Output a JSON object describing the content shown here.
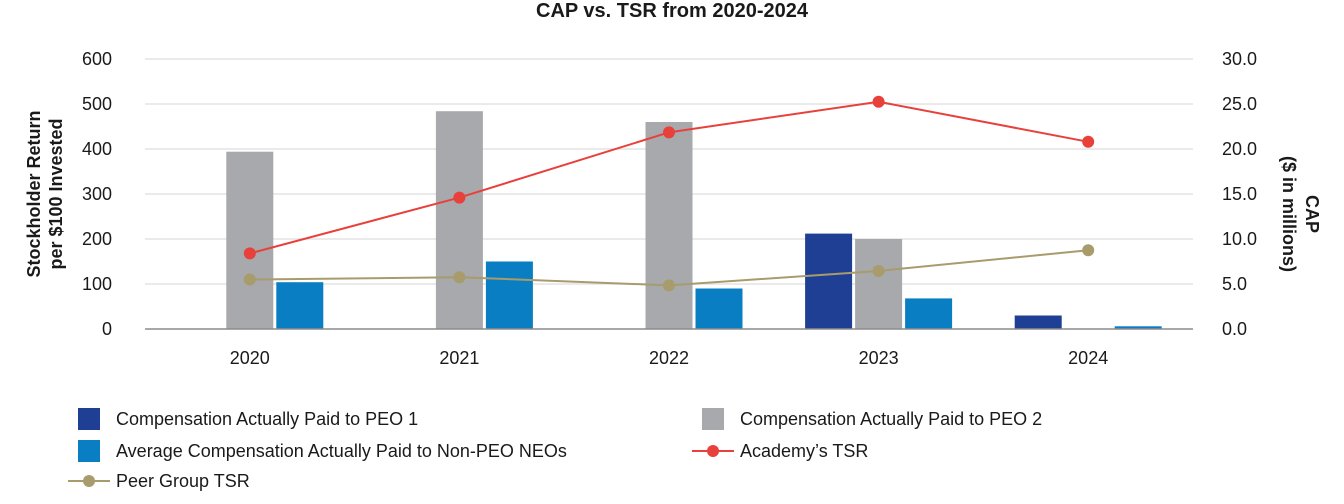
{
  "chart_data": {
    "type": "bar",
    "title": "CAP vs. TSR from 2020-2024",
    "categories": [
      "2020",
      "2021",
      "2022",
      "2023",
      "2024"
    ],
    "y_left": {
      "label_lines": [
        "Stockholder Return",
        "per $100 Invested"
      ],
      "range": [
        0,
        600
      ],
      "ticks": [
        "0",
        "100",
        "200",
        "300",
        "400",
        "500",
        "600"
      ],
      "tick_values": [
        0,
        100,
        200,
        300,
        400,
        500,
        600
      ]
    },
    "y_right": {
      "label_lines": [
        "CAP",
        "($ in millions)"
      ],
      "range": [
        0,
        30
      ],
      "ticks": [
        "0.0",
        "5.0",
        "10.0",
        "15.0",
        "20.0",
        "25.0",
        "30.0"
      ],
      "tick_values": [
        0,
        5,
        10,
        15,
        20,
        25,
        30
      ]
    },
    "grid": true,
    "legend_position": "bottom",
    "bar_series": [
      {
        "name": "Compensation Actually Paid to PEO 1",
        "color": "#1f3f94",
        "axis": "right",
        "values": [
          0,
          0,
          0,
          10.6,
          1.5
        ]
      },
      {
        "name": "Compensation Actually Paid to PEO 2",
        "color": "#a7a9ac",
        "axis": "right",
        "values": [
          19.7,
          24.2,
          23.0,
          10.0,
          0
        ]
      },
      {
        "name": "Average Compensation Actually Paid to Non-PEO NEOs",
        "color": "#0a7ec2",
        "axis": "right",
        "values": [
          5.2,
          7.5,
          4.5,
          3.4,
          0.3
        ]
      }
    ],
    "line_series": [
      {
        "name": "Academy’s TSR",
        "color": "#e8413c",
        "axis": "left",
        "values": [
          168,
          292,
          437,
          505,
          416
        ]
      },
      {
        "name": "Peer Group TSR",
        "color": "#a89b6c",
        "axis": "left",
        "values": [
          110,
          115,
          97,
          129,
          175
        ]
      }
    ],
    "legend_order": [
      {
        "name": "Compensation Actually Paid to PEO 1",
        "kind": "bar",
        "color": "#1f3f94"
      },
      {
        "name": "Compensation Actually Paid to PEO 2",
        "kind": "bar",
        "color": "#a7a9ac"
      },
      {
        "name": "Average Compensation Actually Paid to Non-PEO NEOs",
        "kind": "bar",
        "color": "#0a7ec2"
      },
      {
        "name": "Academy’s TSR",
        "kind": "line",
        "color": "#e8413c"
      },
      {
        "name": "Peer Group TSR",
        "kind": "line",
        "color": "#a89b6c"
      }
    ]
  }
}
